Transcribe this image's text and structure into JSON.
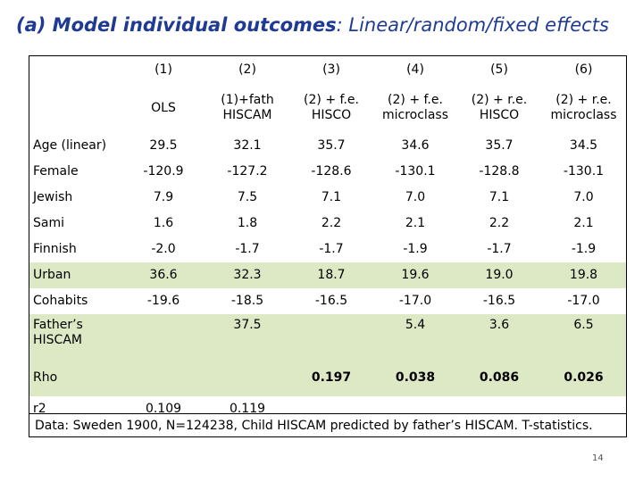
{
  "title": {
    "bold": "(a) Model individual outcomes",
    "rest": ": Linear/random/fixed effects"
  },
  "columns": [
    {
      "num": "(1)",
      "desc1": "OLS",
      "desc2": ""
    },
    {
      "num": "(2)",
      "desc1": "(1)+fath",
      "desc2": "HISCAM"
    },
    {
      "num": "(3)",
      "desc1": "(2) + f.e.",
      "desc2": "HISCO"
    },
    {
      "num": "(4)",
      "desc1": "(2) + f.e.",
      "desc2": "microclass"
    },
    {
      "num": "(5)",
      "desc1": "(2) + r.e.",
      "desc2": "HISCO"
    },
    {
      "num": "(6)",
      "desc1": "(2) + r.e.",
      "desc2": "microclass"
    }
  ],
  "rows": [
    {
      "label": "Age (linear)",
      "values": [
        "29.5",
        "32.1",
        "35.7",
        "34.6",
        "35.7",
        "34.5"
      ]
    },
    {
      "label": "Female",
      "values": [
        "-120.9",
        "-127.2",
        "-128.6",
        "-130.1",
        "-128.8",
        "-130.1"
      ]
    },
    {
      "label": "Jewish",
      "values": [
        "7.9",
        "7.5",
        "7.1",
        "7.0",
        "7.1",
        "7.0"
      ]
    },
    {
      "label": "Sami",
      "values": [
        "1.6",
        "1.8",
        "2.2",
        "2.1",
        "2.2",
        "2.1"
      ]
    },
    {
      "label": "Finnish",
      "values": [
        "-2.0",
        "-1.7",
        "-1.7",
        "-1.9",
        "-1.7",
        "-1.9"
      ]
    },
    {
      "label": "Urban",
      "values": [
        "36.6",
        "32.3",
        "18.7",
        "19.6",
        "19.0",
        "19.8"
      ]
    },
    {
      "label": "Cohabits",
      "values": [
        "-19.6",
        "-18.5",
        "-16.5",
        "-17.0",
        "-16.5",
        "-17.0"
      ]
    },
    {
      "label_line1": "Father’s",
      "label_line2": "HISCAM",
      "values": [
        "",
        "37.5",
        "",
        "5.4",
        "3.6",
        "6.5"
      ]
    },
    {
      "label": "Rho",
      "values": [
        "",
        "",
        "0.197",
        "0.038",
        "0.086",
        "0.026"
      ]
    },
    {
      "label": "r2",
      "values": [
        "0.109",
        "0.119",
        "",
        "",
        "",
        ""
      ]
    }
  ],
  "footnote": "Data: Sweden 1900, N=124238, Child HISCAM predicted by father’s HISCAM. T-statistics.",
  "page_number": "14"
}
